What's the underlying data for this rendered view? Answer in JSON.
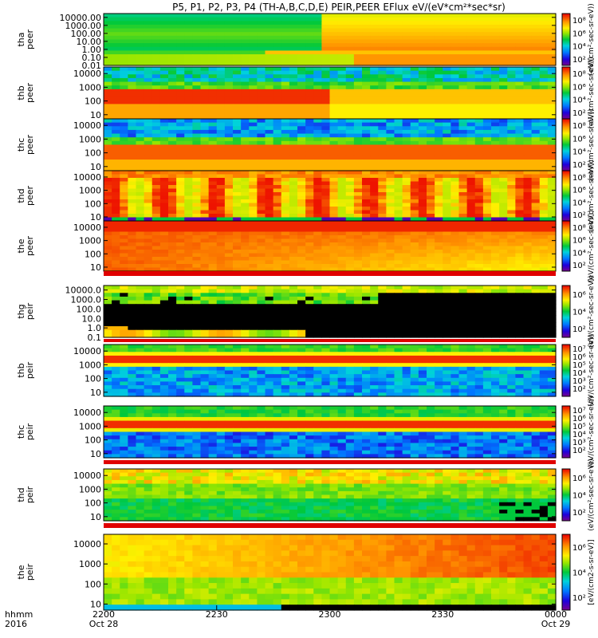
{
  "title": "P5, P1, P2, P3, P4 (TH-A,B,C,D,E) PEIR,PEER EFlux eV/(eV*cm²*sec*sr)",
  "footer": {
    "label_line1": "hhmm",
    "label_line2": "2016",
    "first_date": "Oct 28",
    "last_date": "Oct 29"
  },
  "colors": {
    "frame": "#000000",
    "background": "#ffffff"
  },
  "chart_data": {
    "type": "heatmap",
    "x_ticks": [
      "2200",
      "2230",
      "2300",
      "2330",
      "0000"
    ],
    "x_range": [
      "2016-10-28 22:00",
      "2016-10-29 00:00"
    ],
    "panels": [
      {
        "name": "tha peer",
        "ylabel_line1": "tha",
        "ylabel_line2": "peer",
        "y_ticks": [
          "10000.00",
          "1000.00",
          "100.00",
          "10.00",
          "1.00",
          "0.10",
          "0.01"
        ],
        "y_log_range": [
          0.01,
          30000
        ],
        "cbar_ticks": [
          "10⁸",
          "10⁶",
          "10⁴",
          "10²"
        ],
        "cbar_log_range": [
          1,
          9
        ],
        "cbar_label": "(eV/(cm²-sec-sr-eV))",
        "pattern": "tha_e"
      },
      {
        "name": "thb peer",
        "ylabel_line1": "thb",
        "ylabel_line2": "peer",
        "y_ticks": [
          "10000",
          "1000",
          "100",
          "10"
        ],
        "y_log_range": [
          5,
          30000
        ],
        "cbar_ticks": [
          "10⁸",
          "10⁶",
          "10⁴",
          "10²"
        ],
        "cbar_log_range": [
          1,
          9
        ],
        "cbar_label": "(eV/(cm²-sec-sr-eV))",
        "pattern": "thb_e"
      },
      {
        "name": "thc peer",
        "ylabel_line1": "thc",
        "ylabel_line2": "peer",
        "y_ticks": [
          "10000",
          "1000",
          "100",
          "10"
        ],
        "y_log_range": [
          5,
          30000
        ],
        "cbar_ticks": [
          "10⁸",
          "10⁶",
          "10⁴",
          "10²"
        ],
        "cbar_log_range": [
          1,
          9
        ],
        "cbar_label": "(eV/(cm²-sec-sr-eV))",
        "pattern": "thc_e"
      },
      {
        "name": "thd peer",
        "ylabel_line1": "thd",
        "ylabel_line2": "peer",
        "y_ticks": [
          "10000",
          "1000",
          "100",
          "10"
        ],
        "y_log_range": [
          5,
          30000
        ],
        "cbar_ticks": [
          "10⁸",
          "10⁶",
          "10⁴",
          "10²"
        ],
        "cbar_log_range": [
          1,
          9
        ],
        "cbar_label": "(eV/(cm²-sec-sr-eV))",
        "pattern": "thd_e"
      },
      {
        "name": "the peer",
        "ylabel_line1": "the",
        "ylabel_line2": "peer",
        "y_ticks": [
          "10000",
          "1000",
          "100",
          "10"
        ],
        "y_log_range": [
          5,
          30000
        ],
        "cbar_ticks": [
          "10⁸",
          "10⁶",
          "10⁴",
          "10²"
        ],
        "cbar_log_range": [
          1,
          9
        ],
        "cbar_label": "(eV/(cm²-sec-sr-eV))",
        "pattern": "the_e"
      },
      {
        "name": "thg peir",
        "ylabel_line1": "thg",
        "ylabel_line2": "peir",
        "y_ticks": [
          "10000.0",
          "1000.0",
          "100.0",
          "10.0",
          "1.0",
          "0.1"
        ],
        "y_log_range": [
          0.1,
          30000
        ],
        "cbar_ticks": [
          "10⁶",
          "10⁴",
          "10²"
        ],
        "cbar_log_range": [
          1,
          7
        ],
        "cbar_label": "(eV/(cm²-sec-sr-eV))",
        "pattern": "thg_i"
      },
      {
        "name": "thb peir",
        "ylabel_line1": "thb",
        "ylabel_line2": "peir",
        "y_ticks": [
          "10000",
          "1000",
          "100",
          "10"
        ],
        "y_log_range": [
          5,
          30000
        ],
        "cbar_ticks": [
          "10⁷",
          "10⁶",
          "10⁵",
          "10⁴",
          "10³",
          "10²"
        ],
        "cbar_log_range": [
          1,
          7.5
        ],
        "cbar_label": "(eV/(cm²-sec-sr-eV))",
        "pattern": "thb_i"
      },
      {
        "name": "thc peir",
        "ylabel_line1": "thc",
        "ylabel_line2": "peir",
        "y_ticks": [
          "10000",
          "1000",
          "100",
          "10"
        ],
        "y_log_range": [
          5,
          30000
        ],
        "cbar_ticks": [
          "10⁷",
          "10⁶",
          "10⁵",
          "10⁴",
          "10³",
          "10²"
        ],
        "cbar_log_range": [
          1,
          7.5
        ],
        "cbar_label": "(eV/(cm²-sec-sr-eV))",
        "pattern": "thc_i"
      },
      {
        "name": "thd peir",
        "ylabel_line1": "thd",
        "ylabel_line2": "peir",
        "y_ticks": [
          "10000",
          "1000",
          "100",
          "10"
        ],
        "y_log_range": [
          5,
          30000
        ],
        "cbar_ticks": [
          "10⁶",
          "10⁴",
          "10²"
        ],
        "cbar_log_range": [
          1,
          7
        ],
        "cbar_label": "(eV/(cm²-sec-sr-eV))",
        "pattern": "thd_i"
      },
      {
        "name": "the peir",
        "ylabel_line1": "the",
        "ylabel_line2": "peir",
        "y_ticks": [
          "10000",
          "1000",
          "100",
          "10"
        ],
        "y_log_range": [
          5,
          30000
        ],
        "cbar_ticks": [
          "10⁶",
          "10⁴",
          "10²"
        ],
        "cbar_log_range": [
          1,
          7
        ],
        "cbar_label": "[eV/(cm2-s-sr-eV)]",
        "pattern": "the_i"
      }
    ]
  }
}
